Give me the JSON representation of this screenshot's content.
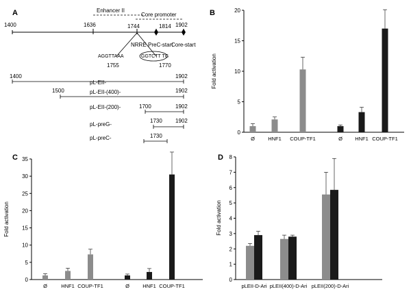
{
  "panel_labels": [
    "A",
    "B",
    "C",
    "D"
  ],
  "diagram": {
    "region_labels": {
      "enhancer": "Enhancer II",
      "core": "Core promoter"
    },
    "coords": {
      "c1400": "1400",
      "c1636": "1636",
      "c1744": "1744",
      "c1814": "1814",
      "c1902": "1902"
    },
    "sites": {
      "nrre": "NRRE",
      "precore": "PreC-start",
      "corestart": "Core-start"
    },
    "sequence": {
      "seq_a": "AGGTTAAA",
      "seq_b": "GGTCTT TG",
      "pos1": "1755",
      "pos2": "1770"
    },
    "constructs": [
      {
        "name": "pL-EII-",
        "start": "1400",
        "end": "1902"
      },
      {
        "name": "pL-EII-(400)-",
        "start": "1500",
        "end": "1902"
      },
      {
        "name": "pL-EII-(200)-",
        "start": "1700",
        "end": "1902"
      },
      {
        "name": "pL-preG-",
        "start": "1730",
        "end": "1902"
      },
      {
        "name": "pL-preC-",
        "start": "",
        "end": "1730"
      }
    ]
  },
  "colors": {
    "gray_bar": "#8c8c8c",
    "black_bar": "#1a1a1a",
    "axis": "#000000"
  },
  "chart_data": [
    {
      "panel": "B",
      "type": "bar",
      "ylabel": "Fold activation",
      "ylim": [
        0,
        20
      ],
      "yticks": [
        0,
        5,
        10,
        15,
        20
      ],
      "categories": [
        "Ø",
        "HNF1",
        "COUP-TF1",
        "Ø",
        "HNF1",
        "COUP-TF1"
      ],
      "bar_colors": [
        "gray",
        "gray",
        "gray",
        "black",
        "black",
        "black"
      ],
      "values": [
        1.0,
        2.1,
        10.3,
        1.0,
        3.3,
        17.0
      ],
      "errors": [
        0.4,
        0.4,
        2.0,
        0.2,
        0.8,
        3.1
      ]
    },
    {
      "panel": "C",
      "type": "bar",
      "ylabel": "Fold activation",
      "ylim": [
        0,
        35
      ],
      "yticks": [
        0,
        5,
        10,
        15,
        20,
        25,
        30,
        35
      ],
      "categories": [
        "Ø",
        "HNF1",
        "COUP-TF1",
        "Ø",
        "HNF1",
        "COUP-TF1"
      ],
      "bar_colors": [
        "gray",
        "gray",
        "gray",
        "black",
        "black",
        "black"
      ],
      "values": [
        1.2,
        2.5,
        7.3,
        1.2,
        2.2,
        30.5
      ],
      "errors": [
        0.5,
        0.8,
        1.5,
        0.4,
        1.0,
        6.5
      ]
    },
    {
      "panel": "D",
      "type": "bar",
      "ylabel": "Fold activation",
      "ylim": [
        0,
        8
      ],
      "yticks": [
        0,
        1,
        2,
        3,
        4,
        5,
        6,
        7,
        8
      ],
      "categories": [
        "pLEII-D-Ari",
        "pLEII(400)-D-Ari",
        "pLEII(200)-D-Ari"
      ],
      "series": [
        {
          "color": "gray",
          "values": [
            2.2,
            2.65,
            5.55
          ],
          "errors": [
            0.15,
            0.25,
            1.45
          ]
        },
        {
          "color": "black",
          "values": [
            2.9,
            2.8,
            5.85
          ],
          "errors": [
            0.25,
            0.1,
            2.05
          ]
        }
      ]
    }
  ]
}
